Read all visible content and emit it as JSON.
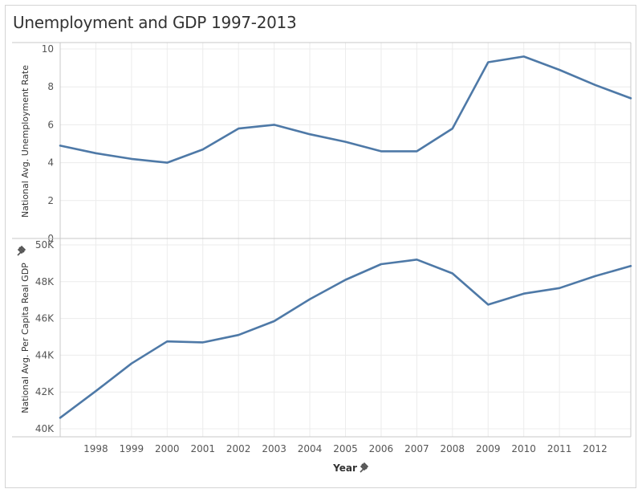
{
  "title": "Unemployment and GDP 1997-2013",
  "colors": {
    "line": "#4e79a7",
    "grid": "#ececec",
    "axis": "#c8c8c8"
  },
  "chart_data": {
    "type": "line",
    "title": "Unemployment and GDP 1997-2013",
    "x": [
      1997,
      1998,
      1999,
      2000,
      2001,
      2002,
      2003,
      2004,
      2005,
      2006,
      2007,
      2008,
      2009,
      2010,
      2011,
      2012,
      2013
    ],
    "xlabel": "Year",
    "xticks": [
      "1998",
      "1999",
      "2000",
      "2001",
      "2002",
      "2003",
      "2004",
      "2005",
      "2006",
      "2007",
      "2008",
      "2009",
      "2010",
      "2011",
      "2012"
    ],
    "xlim": [
      1997,
      2013
    ],
    "panels": [
      {
        "ylabel": "National Avg. Unemployment Rate",
        "ylim": [
          0,
          10
        ],
        "yticks": [
          0,
          2,
          4,
          6,
          8,
          10
        ],
        "ytick_labels": [
          "0",
          "2",
          "4",
          "6",
          "8",
          "10"
        ],
        "values": [
          4.9,
          4.5,
          4.2,
          4.0,
          4.7,
          5.8,
          6.0,
          5.5,
          5.1,
          4.6,
          4.6,
          5.8,
          9.3,
          9.6,
          8.9,
          8.1,
          7.4
        ]
      },
      {
        "ylabel": "National Avg. Per Capita Real GDP",
        "ylim": [
          40000,
          50000
        ],
        "yticks": [
          40000,
          42000,
          44000,
          46000,
          48000,
          50000
        ],
        "ytick_labels": [
          "40K",
          "42K",
          "44K",
          "46K",
          "48K",
          "50K"
        ],
        "values": [
          40600,
          42050,
          43550,
          44750,
          44700,
          45100,
          45850,
          47050,
          48100,
          48950,
          49200,
          48450,
          46750,
          47350,
          47650,
          48300,
          48850
        ]
      }
    ],
    "grid": true
  }
}
